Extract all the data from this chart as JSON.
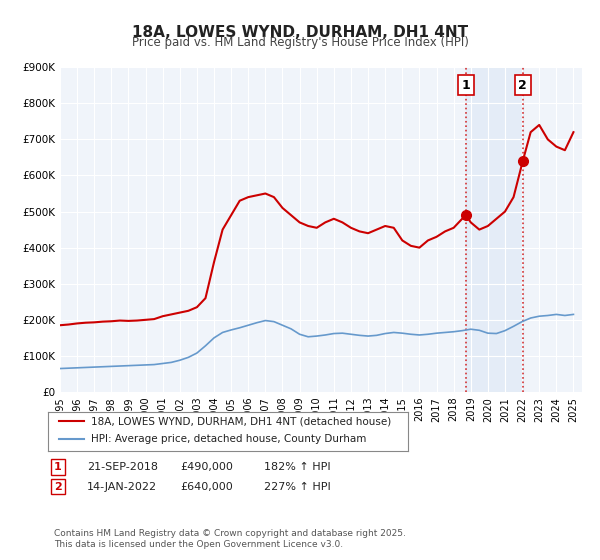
{
  "title": "18A, LOWES WYND, DURHAM, DH1 4NT",
  "subtitle": "Price paid vs. HM Land Registry's House Price Index (HPI)",
  "xlabel": "",
  "ylabel": "",
  "title_fontsize": 11,
  "subtitle_fontsize": 9,
  "background_color": "#ffffff",
  "plot_bg_color": "#f0f4fa",
  "grid_color": "#ffffff",
  "hpi_line_color": "#6699cc",
  "price_line_color": "#cc0000",
  "marker1_date": 2018.72,
  "marker2_date": 2022.04,
  "marker1_price": 490000,
  "marker2_price": 640000,
  "marker1_label": "1",
  "marker2_label": "2",
  "marker1_hpi": 490000,
  "marker2_hpi": 640000,
  "annotation1": "21-SEP-2018    £490,000    182% ↑ HPI",
  "annotation2": "14-JAN-2022    £640,000    227% ↑ HPI",
  "legend_line1": "18A, LOWES WYND, DURHAM, DH1 4NT (detached house)",
  "legend_line2": "HPI: Average price, detached house, County Durham",
  "footer": "Contains HM Land Registry data © Crown copyright and database right 2025.\nThis data is licensed under the Open Government Licence v3.0.",
  "ylim": [
    0,
    900000
  ],
  "xlim_start": 1995,
  "xlim_end": 2025.5,
  "yticks": [
    0,
    100000,
    200000,
    300000,
    400000,
    500000,
    600000,
    700000,
    800000,
    900000
  ],
  "ytick_labels": [
    "£0",
    "£100K",
    "£200K",
    "£300K",
    "£400K",
    "£500K",
    "£600K",
    "£700K",
    "£800K",
    "£900K"
  ],
  "xticks": [
    1995,
    1996,
    1997,
    1998,
    1999,
    2000,
    2001,
    2002,
    2003,
    2004,
    2005,
    2006,
    2007,
    2008,
    2009,
    2010,
    2011,
    2012,
    2013,
    2014,
    2015,
    2016,
    2017,
    2018,
    2019,
    2020,
    2021,
    2022,
    2023,
    2024,
    2025
  ],
  "price_x": [
    1995.0,
    1995.5,
    1996.0,
    1996.5,
    1997.0,
    1997.5,
    1998.0,
    1998.5,
    1999.0,
    1999.5,
    2000.0,
    2000.5,
    2001.0,
    2001.5,
    2002.0,
    2002.5,
    2003.0,
    2003.5,
    2004.0,
    2004.5,
    2005.0,
    2005.5,
    2006.0,
    2006.5,
    2007.0,
    2007.5,
    2008.0,
    2008.5,
    2009.0,
    2009.5,
    2010.0,
    2010.5,
    2011.0,
    2011.5,
    2012.0,
    2012.5,
    2013.0,
    2013.5,
    2014.0,
    2014.5,
    2015.0,
    2015.5,
    2016.0,
    2016.5,
    2017.0,
    2017.5,
    2018.0,
    2018.5,
    2018.72,
    2019.0,
    2019.5,
    2020.0,
    2020.5,
    2021.0,
    2021.5,
    2022.04,
    2022.5,
    2023.0,
    2023.5,
    2024.0,
    2024.5,
    2025.0
  ],
  "price_y": [
    185000,
    187000,
    190000,
    192000,
    193000,
    195000,
    196000,
    198000,
    197000,
    198000,
    200000,
    202000,
    210000,
    215000,
    220000,
    225000,
    235000,
    260000,
    360000,
    450000,
    490000,
    530000,
    540000,
    545000,
    550000,
    540000,
    510000,
    490000,
    470000,
    460000,
    455000,
    470000,
    480000,
    470000,
    455000,
    445000,
    440000,
    450000,
    460000,
    455000,
    420000,
    405000,
    400000,
    420000,
    430000,
    445000,
    455000,
    480000,
    490000,
    470000,
    450000,
    460000,
    480000,
    500000,
    540000,
    640000,
    720000,
    740000,
    700000,
    680000,
    670000,
    720000
  ],
  "hpi_x": [
    1995.0,
    1995.5,
    1996.0,
    1996.5,
    1997.0,
    1997.5,
    1998.0,
    1998.5,
    1999.0,
    1999.5,
    2000.0,
    2000.5,
    2001.0,
    2001.5,
    2002.0,
    2002.5,
    2003.0,
    2003.5,
    2004.0,
    2004.5,
    2005.0,
    2005.5,
    2006.0,
    2006.5,
    2007.0,
    2007.5,
    2008.0,
    2008.5,
    2009.0,
    2009.5,
    2010.0,
    2010.5,
    2011.0,
    2011.5,
    2012.0,
    2012.5,
    2013.0,
    2013.5,
    2014.0,
    2014.5,
    2015.0,
    2015.5,
    2016.0,
    2016.5,
    2017.0,
    2017.5,
    2018.0,
    2018.5,
    2019.0,
    2019.5,
    2020.0,
    2020.5,
    2021.0,
    2021.5,
    2022.0,
    2022.5,
    2023.0,
    2023.5,
    2024.0,
    2024.5,
    2025.0
  ],
  "hpi_y": [
    65000,
    66000,
    67000,
    68000,
    69000,
    70000,
    71000,
    72000,
    73000,
    74000,
    75000,
    76000,
    79000,
    82000,
    88000,
    96000,
    108000,
    128000,
    150000,
    165000,
    172000,
    178000,
    185000,
    192000,
    198000,
    195000,
    185000,
    175000,
    160000,
    153000,
    155000,
    158000,
    162000,
    163000,
    160000,
    157000,
    155000,
    157000,
    162000,
    165000,
    163000,
    160000,
    158000,
    160000,
    163000,
    165000,
    167000,
    170000,
    174000,
    171000,
    163000,
    162000,
    170000,
    182000,
    195000,
    205000,
    210000,
    212000,
    215000,
    212000,
    215000
  ]
}
